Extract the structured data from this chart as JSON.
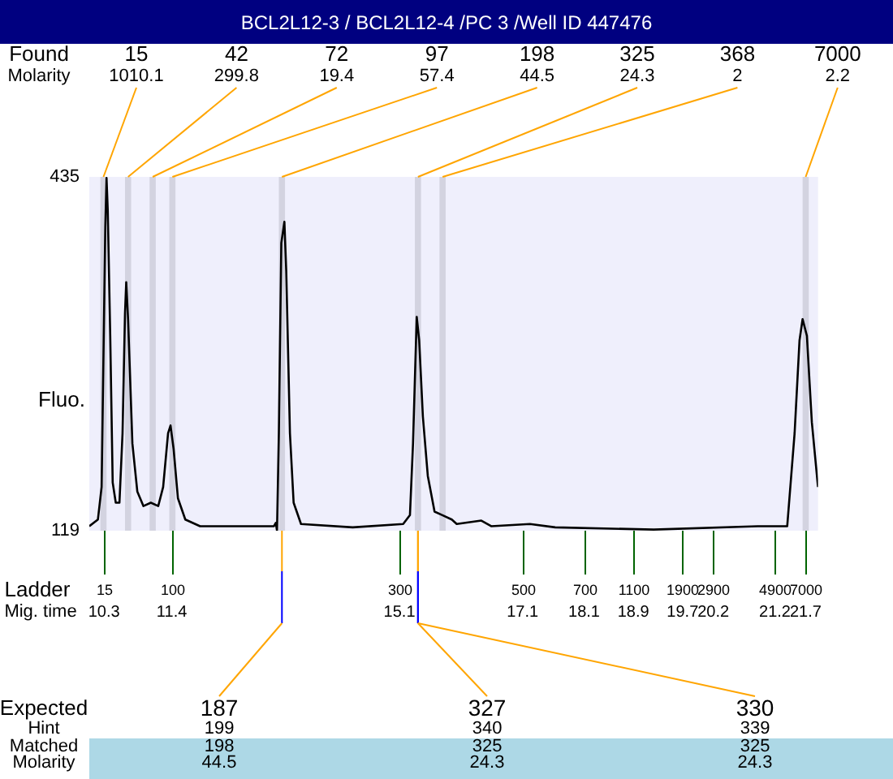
{
  "chart_data": {
    "type": "line",
    "title": "BCL2L12-3 / BCL2L12-4 /PC 3 /Well ID 447476",
    "ylabel": "Fluo.",
    "xlabel": "Mig. time",
    "xlim": [
      10.06,
      21.9
    ],
    "ylim": [
      119,
      435
    ],
    "yticks": [
      119,
      435
    ],
    "xticks": [
      10.3,
      11.4,
      15.1,
      17.1,
      18.1,
      18.9,
      19.7,
      20.2,
      21.2,
      21.7
    ],
    "series": [
      {
        "color": "#000000",
        "x": [
          10.06,
          10.2,
          10.26,
          10.32,
          10.34,
          10.36,
          10.4,
          10.44,
          10.49,
          10.55,
          10.6,
          10.64,
          10.66,
          10.69,
          10.76,
          10.84,
          10.94,
          11.06,
          11.18,
          11.26,
          11.34,
          11.38,
          11.43,
          11.5,
          11.62,
          11.86,
          13.06,
          13.09,
          13.11,
          13.14,
          13.18,
          13.23,
          13.26,
          13.32,
          13.38,
          13.5,
          14.34,
          15.16,
          15.27,
          15.32,
          15.38,
          15.42,
          15.48,
          15.56,
          15.67,
          15.79,
          15.95,
          16.03,
          16.43,
          16.59,
          17.22,
          17.63,
          19.23,
          20.92,
          21.4,
          21.52,
          21.6,
          21.65,
          21.72,
          21.8,
          21.9
        ],
        "values": [
          123,
          129,
          158,
          390,
          434,
          405,
          293,
          162,
          144,
          144,
          206,
          313,
          341,
          308,
          197,
          154,
          141,
          144,
          141,
          158,
          206,
          213,
          192,
          148,
          129,
          123,
          123,
          126,
          119,
          206,
          376,
          395,
          351,
          206,
          144,
          125,
          122,
          125,
          133,
          197,
          310,
          289,
          221,
          168,
          136,
          133,
          129,
          125,
          128,
          123,
          125,
          122,
          120,
          123,
          123,
          206,
          289,
          308,
          293,
          216,
          158
        ]
      }
    ],
    "bands": [
      {
        "axis": "x",
        "from": 10.24,
        "to": 10.34,
        "color": "#d3d3e0",
        "label": "15"
      },
      {
        "axis": "x",
        "from": 10.64,
        "to": 10.74,
        "color": "#d3d3e0",
        "label": "42"
      },
      {
        "axis": "x",
        "from": 11.04,
        "to": 11.14,
        "color": "#d3d3e0",
        "label": "72"
      },
      {
        "axis": "x",
        "from": 11.36,
        "to": 11.46,
        "color": "#d3d3e0",
        "label": "97"
      },
      {
        "axis": "x",
        "from": 13.14,
        "to": 13.24,
        "color": "#d3d3e0",
        "label": "198"
      },
      {
        "axis": "x",
        "from": 15.35,
        "to": 15.45,
        "color": "#d3d3e0",
        "label": "325"
      },
      {
        "axis": "x",
        "from": 15.75,
        "to": 15.85,
        "color": "#d3d3e0",
        "label": "368"
      },
      {
        "axis": "x",
        "from": 21.65,
        "to": 21.75,
        "color": "#d3d3e0",
        "label": "7000"
      }
    ],
    "annotations": [
      "Found",
      "Molarity",
      "Ladder",
      "Expected",
      "Hint",
      "Matched",
      "Molarity",
      {
        "text": "1010.1",
        "x": 10.29,
        "y": 435
      },
      {
        "text": "299.8",
        "x": 10.69,
        "y": 435
      },
      {
        "text": "19.4",
        "x": 11.09,
        "y": 435
      },
      {
        "text": "57.4",
        "x": 11.41,
        "y": 435
      },
      {
        "text": "44.5",
        "x": 13.19,
        "y": 435
      },
      {
        "text": "24.3",
        "x": 15.4,
        "y": 435
      },
      {
        "text": "2",
        "x": 15.8,
        "y": 435
      },
      {
        "text": "2.2",
        "x": 21.7,
        "y": 435
      },
      "15",
      "100",
      "300",
      "500",
      "700",
      "1100",
      "1900",
      "2900",
      "4900",
      "7000",
      "187",
      "199",
      "198",
      "44.5",
      "327",
      "340",
      "325",
      "24.3",
      "330",
      "339",
      "325",
      "24.3"
    ],
    "grid": false,
    "legend": false,
    "marker": "none"
  }
}
